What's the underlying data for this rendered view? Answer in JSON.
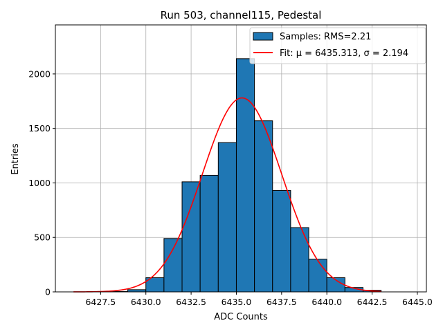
{
  "chart_data": {
    "type": "bar",
    "title": "Run 503, channel115, Pedestal",
    "xlabel": "ADC Counts",
    "ylabel": "Entries",
    "xlim": [
      6425.0,
      6445.5
    ],
    "ylim": [
      0,
      2450
    ],
    "xticks": [
      6427.5,
      6430.0,
      6432.5,
      6435.0,
      6437.5,
      6440.0,
      6442.5,
      6445.0
    ],
    "xtick_labels": [
      "6427.5",
      "6430.0",
      "6432.5",
      "6435.0",
      "6437.5",
      "6440.0",
      "6442.5",
      "6445.0"
    ],
    "yticks": [
      0,
      500,
      1000,
      1500,
      2000
    ],
    "ytick_labels": [
      "0",
      "500",
      "1000",
      "1500",
      "2000"
    ],
    "grid": true,
    "legend_position": "top-right",
    "bins": [
      {
        "left": 6427,
        "right": 6428,
        "count": 2
      },
      {
        "left": 6428,
        "right": 6429,
        "count": 3
      },
      {
        "left": 6429,
        "right": 6430,
        "count": 20
      },
      {
        "left": 6430,
        "right": 6431,
        "count": 130
      },
      {
        "left": 6431,
        "right": 6432,
        "count": 490
      },
      {
        "left": 6432,
        "right": 6433,
        "count": 1010
      },
      {
        "left": 6433,
        "right": 6434,
        "count": 1070
      },
      {
        "left": 6434,
        "right": 6435,
        "count": 1370
      },
      {
        "left": 6435,
        "right": 6436,
        "count": 2140
      },
      {
        "left": 6436,
        "right": 6437,
        "count": 1570
      },
      {
        "left": 6437,
        "right": 6438,
        "count": 930
      },
      {
        "left": 6438,
        "right": 6439,
        "count": 590
      },
      {
        "left": 6439,
        "right": 6440,
        "count": 300
      },
      {
        "left": 6440,
        "right": 6441,
        "count": 130
      },
      {
        "left": 6441,
        "right": 6442,
        "count": 40
      },
      {
        "left": 6442,
        "right": 6443,
        "count": 15
      }
    ],
    "fit": {
      "mu": 6435.313,
      "sigma": 2.194,
      "peak": 1780,
      "x_start": 6426.0,
      "x_end": 6443.0
    },
    "legend": [
      {
        "label": "Samples: RMS=2.21",
        "kind": "patch",
        "color": "#1f77b4"
      },
      {
        "label": "Fit: μ = 6435.313, σ = 2.194",
        "kind": "line",
        "color": "#ff0000"
      }
    ],
    "colors": {
      "bar_fill": "#1f77b4",
      "bar_edge": "#000000",
      "fit_line": "#ff0000",
      "grid": "#b0b0b0"
    }
  }
}
